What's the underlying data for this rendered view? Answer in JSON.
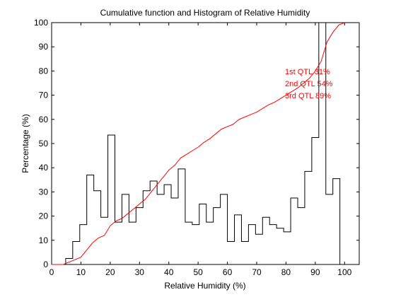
{
  "chart_data": {
    "type": "line",
    "title": "Cumulative function and Histogram of Relative Humidity",
    "xlabel": "Relative Humidity (%)",
    "ylabel": "Percentage (%)",
    "xlim": [
      0,
      105
    ],
    "ylim": [
      0,
      100
    ],
    "xticks": [
      0,
      10,
      20,
      30,
      40,
      50,
      60,
      70,
      80,
      90,
      100
    ],
    "yticks": [
      0,
      10,
      20,
      30,
      40,
      50,
      60,
      70,
      80,
      90,
      100
    ],
    "grid": false,
    "annotations": [
      "1st QTL  31%",
      "2nd QTL  54%",
      "3rd QTL  89%"
    ],
    "colors": {
      "histogram": "#000000",
      "cumulative": "#ff0000",
      "annotation": "#ff0000"
    },
    "series": [
      {
        "type": "histogram",
        "bin_edges": [
          4.8,
          7.2,
          9.6,
          12,
          14.4,
          16.8,
          19.2,
          21.6,
          24,
          26.4,
          28.8,
          31.2,
          33.6,
          36,
          38.4,
          40.8,
          43.2,
          45.6,
          48,
          50.4,
          52.8,
          55.2,
          57.6,
          60,
          62.4,
          64.8,
          67.2,
          69.6,
          72,
          74.4,
          76.8,
          79.2,
          81.6,
          84,
          86.4,
          88.8,
          91.2,
          93.6,
          96,
          98.4,
          100.8
        ],
        "values": [
          2.5,
          9.5,
          16.5,
          37,
          30.5,
          19.5,
          53.5,
          17.5,
          29,
          17.5,
          23.5,
          30.5,
          34.5,
          29,
          33,
          27.5,
          39.5,
          17.5,
          16.5,
          25,
          17.5,
          23.5,
          29,
          9.5,
          20.5,
          9.5,
          16.5,
          12.5,
          19.5,
          16.5,
          15,
          13.5,
          27.5,
          23.5,
          38.5,
          52.5,
          100,
          29,
          35.5,
          0
        ]
      },
      {
        "type": "line",
        "x": [
          0,
          4,
          6,
          8,
          10,
          12,
          14,
          16,
          18,
          20,
          22,
          24,
          26,
          28,
          30,
          32,
          34,
          36,
          38,
          40,
          42,
          44,
          46,
          48,
          50,
          52,
          54,
          56,
          58,
          60,
          62,
          64,
          66,
          68,
          70,
          72,
          74,
          76,
          78,
          80,
          82,
          84,
          86,
          88,
          90,
          92,
          94,
          96,
          98,
          100
        ],
        "y": [
          0,
          0,
          1,
          2,
          3,
          6,
          9,
          11,
          12,
          16,
          18,
          19,
          21,
          23,
          25,
          27,
          30,
          33,
          36,
          39,
          41,
          44,
          45.5,
          47,
          48.5,
          50.5,
          52,
          54,
          56,
          57,
          58,
          60,
          61,
          62,
          63,
          64.5,
          66,
          67,
          68.5,
          70,
          71.5,
          73,
          75,
          77,
          80,
          84,
          92,
          96,
          99,
          100
        ]
      }
    ]
  }
}
